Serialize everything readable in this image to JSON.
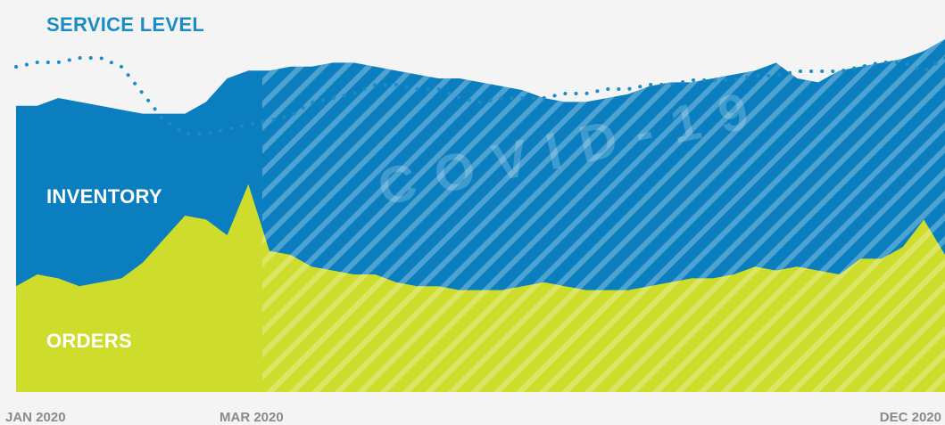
{
  "chart_data": {
    "type": "area",
    "title": "",
    "x_tick_labels": [
      "JAN 2020",
      "MAR 2020",
      "DEC 2020"
    ],
    "highlight_band": {
      "label": "COVID-19",
      "from": "MAR 2020",
      "to": "DEC 2020"
    },
    "grid": false,
    "ylim": [
      0,
      100
    ],
    "x": [
      0,
      1,
      2,
      3,
      4,
      5,
      6,
      7,
      8,
      9,
      10,
      11,
      12,
      13,
      14,
      15,
      16,
      17,
      18,
      19,
      20,
      21,
      22,
      23,
      24,
      25,
      26,
      27,
      28,
      29,
      30,
      31,
      32,
      33,
      34,
      35,
      36,
      37,
      38,
      39,
      40,
      41,
      42,
      43,
      44
    ],
    "series": [
      {
        "name": "SERVICE LEVEL",
        "style": "dotted-line",
        "color": "#1b8dc6",
        "values": [
          86,
          87,
          87,
          88,
          88,
          86,
          80,
          74,
          71,
          71,
          72,
          73,
          74,
          75,
          78,
          79,
          80,
          82,
          82,
          81,
          81,
          79,
          78,
          79,
          79,
          79,
          80,
          80,
          81,
          81,
          82,
          82,
          83,
          83,
          83,
          84,
          84,
          85,
          85,
          85,
          86,
          87,
          87,
          85,
          88
        ]
      },
      {
        "name": "INVENTORY",
        "style": "area",
        "color": "#0a7ebf",
        "values": [
          73,
          73,
          75,
          74,
          73,
          72,
          71,
          71,
          71,
          74,
          80,
          82,
          82,
          83,
          83,
          84,
          84,
          83,
          82,
          81,
          80,
          80,
          79,
          78,
          77,
          75,
          74,
          74,
          75,
          76,
          78,
          79,
          79,
          80,
          81,
          82,
          84,
          80,
          79,
          82,
          83,
          84,
          85,
          87,
          90
        ]
      },
      {
        "name": "ORDERS",
        "style": "area",
        "color": "#cedd2b",
        "values": [
          27,
          30,
          29,
          27,
          28,
          29,
          33,
          39,
          45,
          44,
          40,
          53,
          36,
          35,
          32,
          31,
          30,
          30,
          28,
          27,
          27,
          26,
          26,
          26,
          27,
          28,
          27,
          26,
          26,
          26,
          27,
          28,
          29,
          29,
          30,
          32,
          31,
          32,
          31,
          30,
          34,
          34,
          37,
          44,
          35
        ]
      }
    ]
  },
  "labels": {
    "service_level": "SERVICE LEVEL",
    "inventory": "INVENTORY",
    "orders": "ORDERS",
    "covid": "COVID-19"
  },
  "colors": {
    "background": "#f4f4f4",
    "service_level": "#1b8dc6",
    "inventory": "#0a7ebf",
    "orders": "#cedd2b",
    "hatch": "#ffffff"
  }
}
